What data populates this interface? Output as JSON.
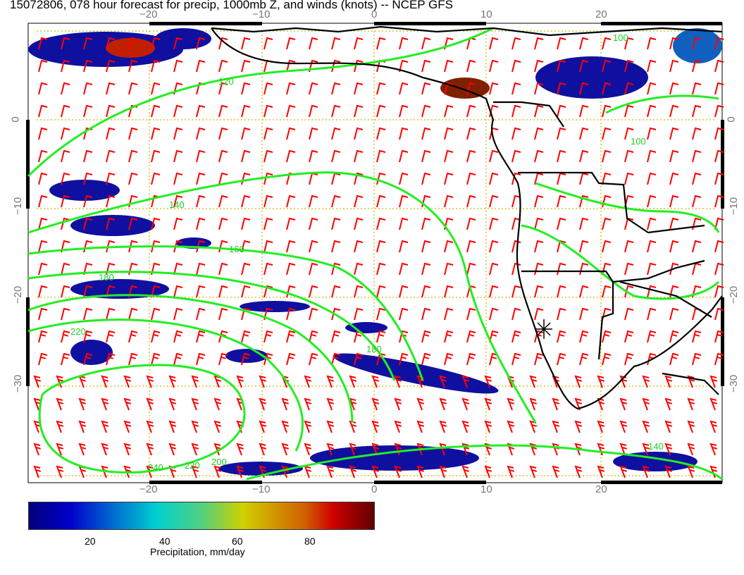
{
  "title": "15072806, 078 hour forecast for precip, 1000mb Z, and winds (knots) -- NCEP GFS",
  "lon_ticks": [
    "−20",
    "−10",
    "0",
    "10",
    "20"
  ],
  "lat_ticks": [
    "0",
    "−10",
    "−20",
    "−30"
  ],
  "contour_labels": [
    "100",
    "120",
    "140",
    "160",
    "180",
    "200",
    "220",
    "240"
  ],
  "colors": {
    "contours": "#22ee22",
    "barbs": "#ff0000",
    "coast": "#000000",
    "grid": "#d4b400"
  },
  "colorbar": {
    "ticks": [
      "20",
      "40",
      "60",
      "80"
    ],
    "label": "Precipitation, mm/day",
    "range": [
      2,
      98
    ]
  }
}
